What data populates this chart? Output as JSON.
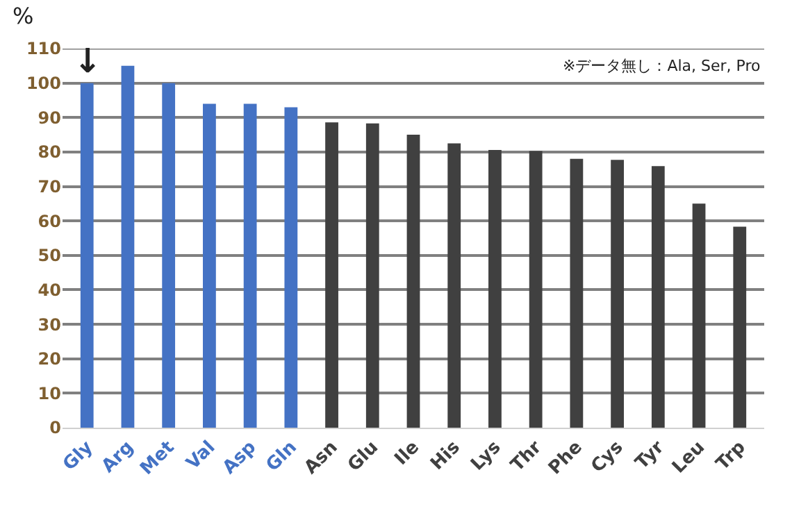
{
  "chart_data": {
    "type": "bar",
    "ylabel": "%",
    "categories": [
      "Gly",
      "Arg",
      "Met",
      "Val",
      "Asp",
      "Gln",
      "Asn",
      "Glu",
      "Ile",
      "His",
      "Lys",
      "Thr",
      "Phe",
      "Cys",
      "Tyr",
      "Leu",
      "Trp"
    ],
    "values": [
      100,
      105,
      100,
      94,
      94,
      93,
      88.6,
      88.3,
      85,
      82.5,
      80.6,
      80.3,
      78,
      77.7,
      75.9,
      65,
      58.3
    ],
    "colors": [
      "#4472c4",
      "#4472c4",
      "#4472c4",
      "#4472c4",
      "#4472c4",
      "#4472c4",
      "#404040",
      "#404040",
      "#404040",
      "#404040",
      "#404040",
      "#404040",
      "#404040",
      "#404040",
      "#404040",
      "#404040",
      "#404040"
    ],
    "ylim": [
      0,
      110
    ],
    "yticks": [
      0,
      10,
      20,
      30,
      40,
      50,
      60,
      70,
      80,
      90,
      100,
      110
    ],
    "grid": "y",
    "legend": false,
    "annotations": [
      {
        "text": "↓",
        "x": "Gly",
        "y": 100
      },
      "※データ無し：Ala, Ser, Pro"
    ]
  }
}
